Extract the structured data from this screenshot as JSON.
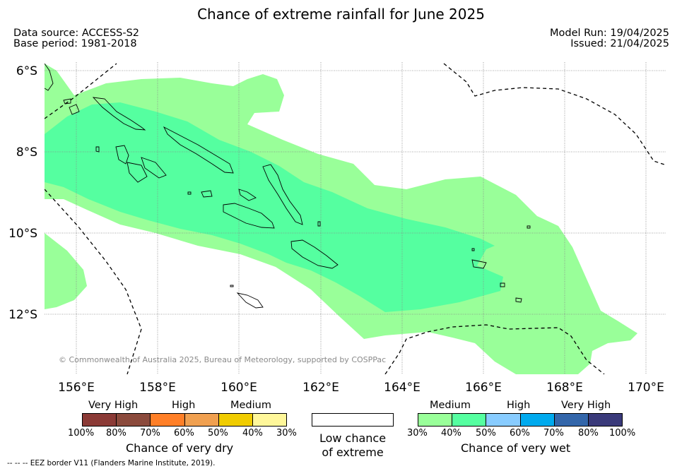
{
  "title": "Chance of extreme rainfall for June 2025",
  "meta_left": {
    "line1": "Data source: ACCESS-S2",
    "line2": "Base period: 1981-2018"
  },
  "meta_right": {
    "line1": "Model Run: 19/04/2025",
    "line2": "Issued: 21/04/2025"
  },
  "map": {
    "lat_labels": [
      "6°S",
      "8°S",
      "10°S",
      "12°S"
    ],
    "lon_labels": [
      "156°E",
      "158°E",
      "160°E",
      "162°E",
      "164°E",
      "166°E",
      "168°E",
      "170°E"
    ],
    "copyright": "© Commonwealth of Australia 2025, Bureau of Meteorology, supported by COSPPac",
    "colors": {
      "medium_wet": "#99ff99",
      "high_wet": "#55ffa0",
      "coast": "#000000",
      "eez": "#000000",
      "grid": "#888888"
    }
  },
  "legend_dry": {
    "captions": [
      "Very High",
      "High",
      "Medium"
    ],
    "ticks": [
      "100%",
      "80%",
      "70%",
      "60%",
      "50%",
      "40%",
      "30%"
    ],
    "colors": [
      "#8b3a36",
      "#8b4a3c",
      "#ff7f27",
      "#f0a050",
      "#f0cc00",
      "#fff79a"
    ],
    "title": "Chance of very dry"
  },
  "legend_low": {
    "line1": "Low chance",
    "line2": "of extreme"
  },
  "legend_wet": {
    "captions": [
      "Medium",
      "High",
      "Very High"
    ],
    "ticks": [
      "30%",
      "40%",
      "50%",
      "60%",
      "70%",
      "80%",
      "100%"
    ],
    "colors": [
      "#99ff99",
      "#55ffa0",
      "#88ccff",
      "#00aaee",
      "#3366aa",
      "#3a3a7a"
    ],
    "title": "Chance of very wet"
  },
  "footer": "-- -- -- EEZ border V11 (Flanders Marine Institute, 2019)."
}
